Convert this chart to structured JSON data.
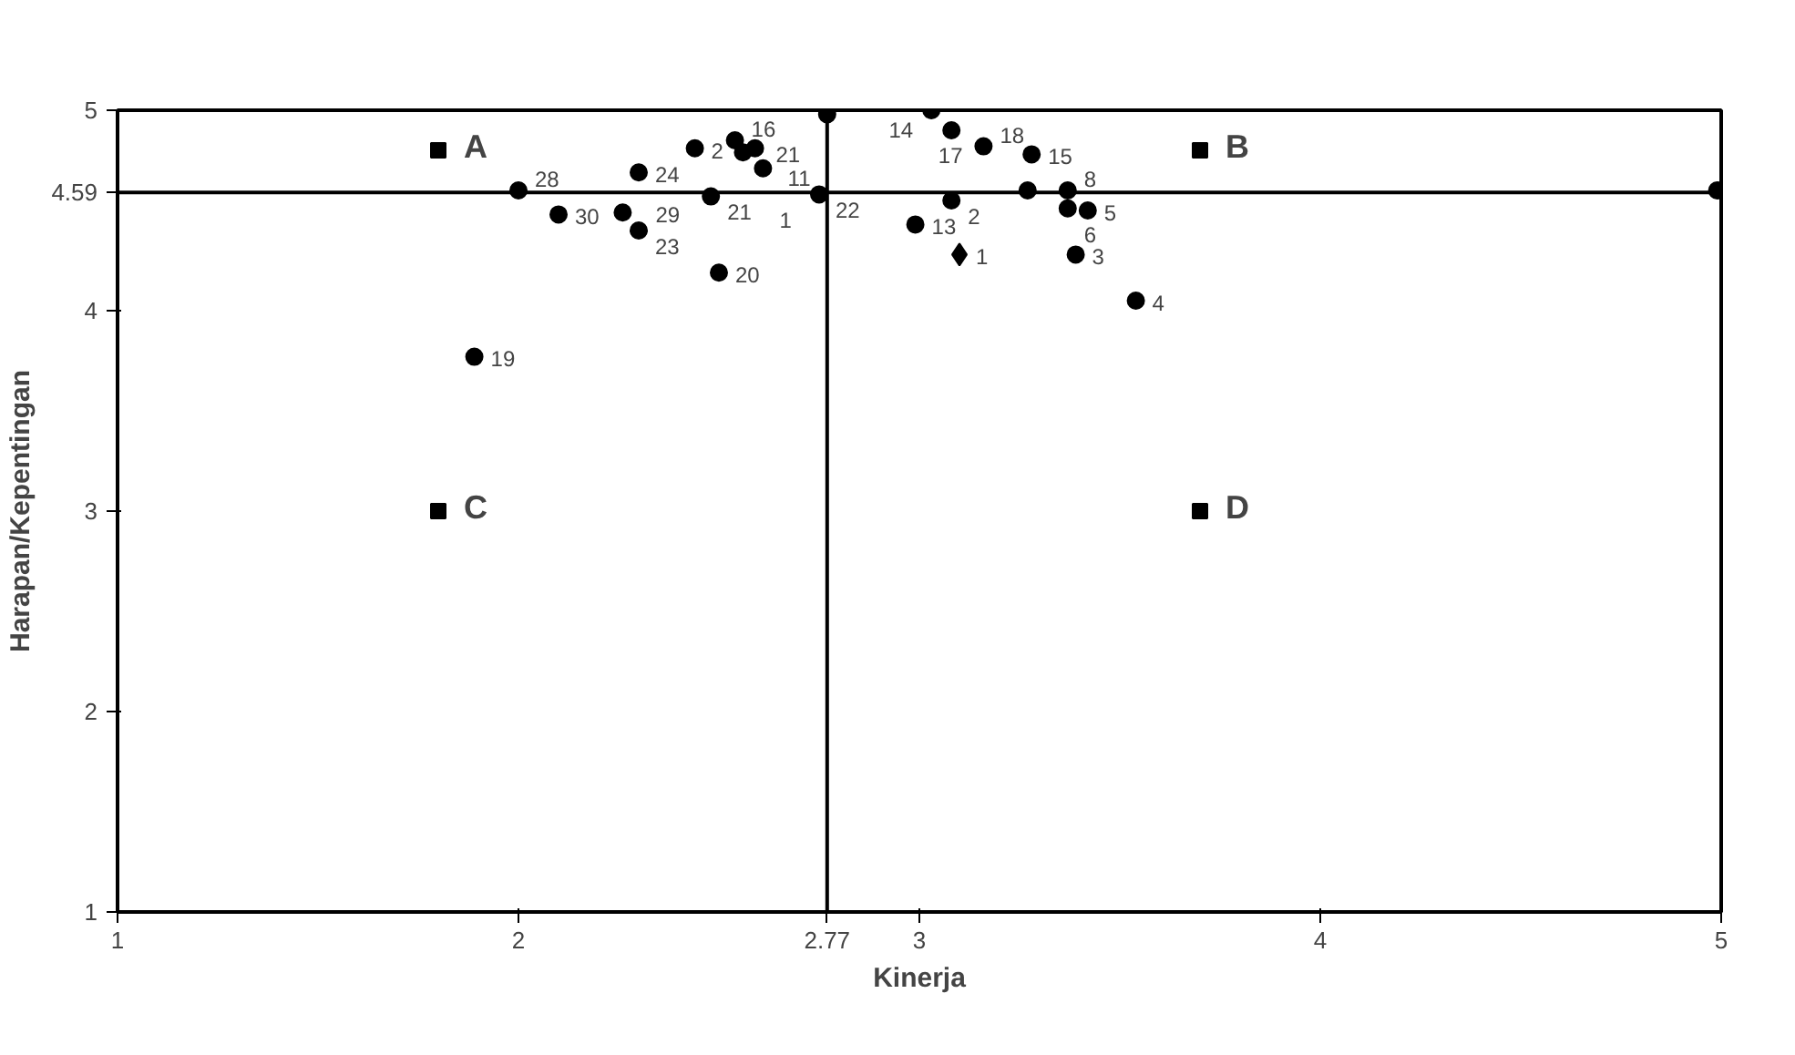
{
  "chart_data": {
    "type": "scatter",
    "xlabel": "Kinerja",
    "ylabel": "Harapan/Kepentingan",
    "xlim": [
      1,
      5
    ],
    "ylim": [
      1,
      5
    ],
    "xticks": [
      1,
      2,
      {
        "value": 2.77,
        "label": "2.77"
      },
      3,
      4,
      5
    ],
    "yticks": [
      1,
      2,
      3,
      4,
      {
        "value": 4.59,
        "label": "4.59"
      },
      5
    ],
    "grid": false,
    "ref_lines": [
      {
        "axis": "x",
        "value": 2.77,
        "color": "#000000"
      },
      {
        "axis": "y",
        "value": 4.59,
        "color": "#000000"
      }
    ],
    "series": [
      {
        "color": "#000000",
        "marker": "circle",
        "x": [
          2.0,
          2.1,
          2.26,
          2.3,
          2.3,
          2.5,
          2.48,
          2.44,
          2.54,
          2.56,
          2.59,
          2.61,
          2.77,
          2.75,
          3.03,
          3.08,
          3.16,
          3.28,
          3.08,
          2.99,
          3.27,
          3.37,
          3.37,
          3.42,
          3.39,
          3.54,
          1.89,
          4.99
        ],
        "values": [
          4.6,
          4.48,
          4.49,
          4.4,
          4.69,
          4.19,
          4.57,
          4.81,
          4.85,
          4.79,
          4.81,
          4.71,
          4.98,
          4.58,
          5.0,
          4.9,
          4.82,
          4.78,
          4.55,
          4.43,
          4.6,
          4.6,
          4.51,
          4.5,
          4.28,
          4.05,
          3.77,
          4.6
        ]
      },
      {
        "color": "#000000",
        "marker": "diamond",
        "x": [
          3.1
        ],
        "values": [
          4.28
        ]
      },
      {
        "color": "#000000",
        "marker": "square",
        "x": [
          1.8,
          3.7,
          1.8,
          3.7
        ],
        "values": [
          4.8,
          4.8,
          3.0,
          3.0
        ]
      }
    ],
    "annotations": [
      {
        "text": "28",
        "x": 2.0,
        "y": 4.6
      },
      {
        "text": "30",
        "x": 2.1,
        "y": 4.48
      },
      {
        "text": "29",
        "x": 2.26,
        "y": 4.49
      },
      {
        "text": "23",
        "x": 2.3,
        "y": 4.4
      },
      {
        "text": "24",
        "x": 2.3,
        "y": 4.69
      },
      {
        "text": "20",
        "x": 2.5,
        "y": 4.19
      },
      {
        "text": "21",
        "x": 2.48,
        "y": 4.57
      },
      {
        "text": "2",
        "x": 2.44,
        "y": 4.81
      },
      {
        "text": "16",
        "x": 2.54,
        "y": 4.85
      },
      {
        "text": "21",
        "x": 2.56,
        "y": 4.79
      },
      {
        "text": "11",
        "x": 2.59,
        "y": 4.81
      },
      {
        "text": "1",
        "x": 2.61,
        "y": 4.71
      },
      {
        "text": "22",
        "x": 2.75,
        "y": 4.58
      },
      {
        "text": "14",
        "x": 3.03,
        "y": 5.0
      },
      {
        "text": "17",
        "x": 3.08,
        "y": 4.9
      },
      {
        "text": "18",
        "x": 3.16,
        "y": 4.82
      },
      {
        "text": "15",
        "x": 3.28,
        "y": 4.78
      },
      {
        "text": "2",
        "x": 3.08,
        "y": 4.55
      },
      {
        "text": "13",
        "x": 2.99,
        "y": 4.43
      },
      {
        "text": "1",
        "x": 3.1,
        "y": 4.28
      },
      {
        "text": "8",
        "x": 3.37,
        "y": 4.6
      },
      {
        "text": "6",
        "x": 3.37,
        "y": 4.51
      },
      {
        "text": "5",
        "x": 3.42,
        "y": 4.5
      },
      {
        "text": "3",
        "x": 3.39,
        "y": 4.28
      },
      {
        "text": "4",
        "x": 3.54,
        "y": 4.05
      },
      {
        "text": "19",
        "x": 1.89,
        "y": 3.77
      },
      {
        "text": "A",
        "x": 1.8,
        "y": 4.8
      },
      {
        "text": "B",
        "x": 3.7,
        "y": 4.8
      },
      {
        "text": "C",
        "x": 1.8,
        "y": 3.0
      },
      {
        "text": "D",
        "x": 3.7,
        "y": 3.0
      }
    ]
  }
}
